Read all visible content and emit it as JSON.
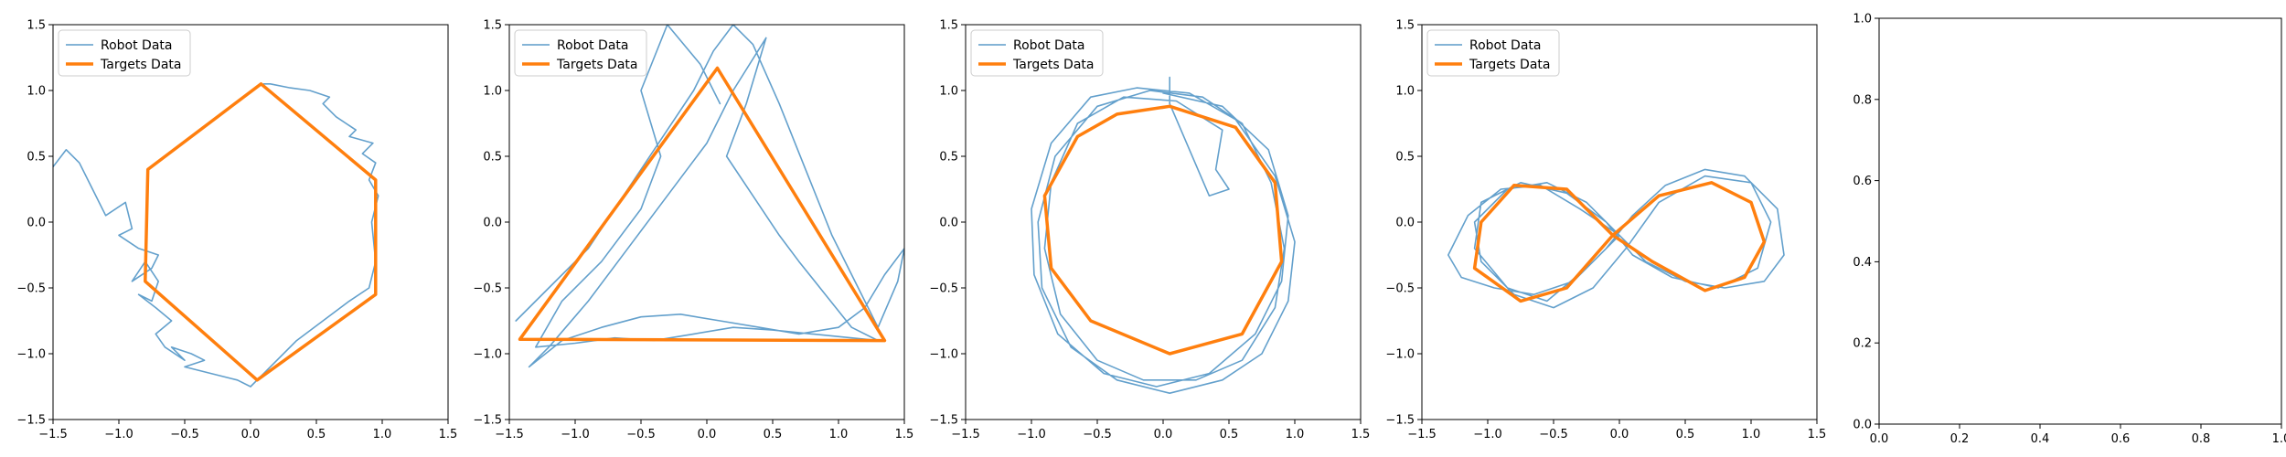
{
  "chart_data": [
    {
      "type": "line",
      "xlim": [
        -1.5,
        1.5
      ],
      "ylim": [
        -1.5,
        1.5
      ],
      "xticks": [
        -1.5,
        -1.0,
        -0.5,
        0.0,
        0.5,
        1.0,
        1.5
      ],
      "yticks": [
        -1.5,
        -1.0,
        -0.5,
        0.0,
        0.5,
        1.0,
        1.5
      ],
      "xtick_labels": [
        "−1.5",
        "−1.0",
        "−0.5",
        "0.0",
        "0.5",
        "1.0",
        "1.5"
      ],
      "ytick_labels": [
        "−1.5",
        "−1.0",
        "−0.5",
        "0.0",
        "0.5",
        "1.0",
        "1.5"
      ],
      "legend": {
        "placement": "upper-left",
        "entries": [
          "Robot Data",
          "Targets Data"
        ]
      },
      "series": [
        {
          "name": "Robot Data",
          "color": "#5b9bc9",
          "x": [
            -1.5,
            -1.4,
            -1.3,
            -1.2,
            -1.1,
            -0.95,
            -0.9,
            -1.0,
            -0.85,
            -0.7,
            -0.75,
            -0.9,
            -0.8,
            -0.7,
            -0.75,
            -0.85,
            -0.72,
            -0.6,
            -0.72,
            -0.65,
            -0.5,
            -0.6,
            -0.45,
            -0.35,
            -0.5,
            -0.3,
            -0.1,
            0.0,
            0.05,
            0.15,
            0.35,
            0.55,
            0.75,
            0.9,
            0.95,
            0.92,
            0.97,
            0.9,
            0.95,
            0.85,
            0.93,
            0.75,
            0.8,
            0.65,
            0.55,
            0.6,
            0.45,
            0.3,
            0.15,
            0.1
          ],
          "y": [
            0.42,
            0.55,
            0.45,
            0.25,
            0.05,
            0.15,
            -0.05,
            -0.1,
            -0.2,
            -0.25,
            -0.35,
            -0.45,
            -0.3,
            -0.45,
            -0.6,
            -0.55,
            -0.65,
            -0.75,
            -0.85,
            -0.95,
            -1.05,
            -0.95,
            -1.0,
            -1.05,
            -1.1,
            -1.15,
            -1.2,
            -1.25,
            -1.2,
            -1.1,
            -0.9,
            -0.75,
            -0.6,
            -0.5,
            -0.3,
            0.0,
            0.2,
            0.32,
            0.45,
            0.52,
            0.6,
            0.65,
            0.7,
            0.8,
            0.9,
            0.95,
            1.0,
            1.02,
            1.05,
            1.05
          ]
        },
        {
          "name": "Targets Data",
          "color": "#ff7f0e",
          "x": [
            0.08,
            0.95,
            0.95,
            0.05,
            -0.8,
            -0.78,
            0.08
          ],
          "y": [
            1.05,
            0.32,
            -0.55,
            -1.2,
            -0.45,
            0.4,
            1.05
          ]
        }
      ]
    },
    {
      "type": "line",
      "xlim": [
        -1.5,
        1.5
      ],
      "ylim": [
        -1.5,
        1.5
      ],
      "xticks": [
        -1.5,
        -1.0,
        -0.5,
        0.0,
        0.5,
        1.0,
        1.5
      ],
      "yticks": [
        -1.5,
        -1.0,
        -0.5,
        0.0,
        0.5,
        1.0,
        1.5
      ],
      "xtick_labels": [
        "−1.5",
        "−1.0",
        "−0.5",
        "0.0",
        "0.5",
        "1.0",
        "1.5"
      ],
      "ytick_labels": [
        "−1.5",
        "−1.0",
        "−0.5",
        "0.0",
        "0.5",
        "1.0",
        "1.5"
      ],
      "legend": {
        "placement": "upper-left",
        "entries": [
          "Robot Data",
          "Targets Data"
        ]
      },
      "series": [
        {
          "name": "Robot Data",
          "color": "#5b9bc9",
          "x": [
            -1.45,
            -1.2,
            -0.9,
            -0.7,
            -0.5,
            -0.3,
            -0.1,
            0.05,
            0.2,
            0.35,
            0.55,
            0.75,
            0.95,
            1.15,
            1.3,
            1.45,
            1.5,
            1.35,
            1.2,
            1.0,
            0.7,
            0.4,
            0.1,
            -0.2,
            -0.5,
            -0.8,
            -1.1,
            -1.35,
            -1.2,
            -0.9,
            -0.6,
            -0.3,
            0.0,
            0.2,
            0.45,
            0.3,
            0.15,
            0.35,
            0.55,
            0.7,
            0.9,
            1.1,
            1.3,
            1.1,
            0.8,
            0.5,
            0.2,
            -0.1,
            -0.4,
            -0.7,
            -1.0,
            -1.3,
            -1.1,
            -0.8,
            -0.5,
            -0.35,
            -0.5,
            -0.3,
            -0.05,
            0.1
          ],
          "y": [
            -0.75,
            -0.5,
            -0.2,
            0.1,
            0.4,
            0.7,
            1.0,
            1.3,
            1.5,
            1.35,
            0.9,
            0.4,
            -0.1,
            -0.5,
            -0.8,
            -0.45,
            -0.2,
            -0.4,
            -0.65,
            -0.8,
            -0.85,
            -0.8,
            -0.75,
            -0.7,
            -0.72,
            -0.8,
            -0.9,
            -1.1,
            -0.95,
            -0.6,
            -0.2,
            0.2,
            0.6,
            1.0,
            1.4,
            0.9,
            0.5,
            0.2,
            -0.1,
            -0.3,
            -0.55,
            -0.8,
            -0.9,
            -0.88,
            -0.85,
            -0.82,
            -0.8,
            -0.85,
            -0.9,
            -0.88,
            -0.92,
            -0.95,
            -0.6,
            -0.3,
            0.1,
            0.5,
            1.0,
            1.5,
            1.2,
            0.9
          ]
        },
        {
          "name": "Targets Data",
          "color": "#ff7f0e",
          "x": [
            0.08,
            1.35,
            -1.42,
            0.08
          ],
          "y": [
            1.17,
            -0.9,
            -0.89,
            1.17
          ]
        }
      ]
    },
    {
      "type": "line",
      "xlim": [
        -1.5,
        1.5
      ],
      "ylim": [
        -1.5,
        1.5
      ],
      "xticks": [
        -1.5,
        -1.0,
        -0.5,
        0.0,
        0.5,
        1.0,
        1.5
      ],
      "yticks": [
        -1.5,
        -1.0,
        -0.5,
        0.0,
        0.5,
        1.0,
        1.5
      ],
      "xtick_labels": [
        "−1.5",
        "−1.0",
        "−0.5",
        "0.0",
        "0.5",
        "1.0",
        "1.5"
      ],
      "ytick_labels": [
        "−1.5",
        "−1.0",
        "−0.5",
        "0.0",
        "0.5",
        "1.0",
        "1.5"
      ],
      "legend": {
        "placement": "upper-left",
        "entries": [
          "Robot Data",
          "Targets Data"
        ]
      },
      "series": [
        {
          "name": "Robot Data",
          "color": "#5b9bc9",
          "x": [
            0.0,
            0.45,
            0.8,
            0.95,
            0.9,
            0.7,
            0.35,
            -0.05,
            -0.45,
            -0.8,
            -0.98,
            -1.0,
            -0.85,
            -0.55,
            -0.2,
            0.2,
            0.55,
            0.85,
            1.0,
            0.95,
            0.75,
            0.45,
            0.05,
            -0.35,
            -0.7,
            -0.92,
            -0.95,
            -0.82,
            -0.5,
            -0.1,
            0.3,
            0.6,
            0.82,
            0.92,
            0.85,
            0.6,
            0.25,
            -0.15,
            -0.5,
            -0.78,
            -0.9,
            -0.85,
            -0.65,
            -0.3,
            0.1,
            0.45,
            0.4,
            0.5,
            0.35,
            0.05,
            0.05
          ],
          "y": [
            0.98,
            0.88,
            0.55,
            0.05,
            -0.45,
            -0.85,
            -1.15,
            -1.25,
            -1.15,
            -0.85,
            -0.4,
            0.1,
            0.6,
            0.95,
            1.02,
            0.98,
            0.78,
            0.35,
            -0.15,
            -0.6,
            -1.0,
            -1.2,
            -1.3,
            -1.2,
            -0.95,
            -0.5,
            0.0,
            0.5,
            0.88,
            1.0,
            0.95,
            0.75,
            0.3,
            -0.2,
            -0.65,
            -1.05,
            -1.2,
            -1.2,
            -1.05,
            -0.7,
            -0.2,
            0.3,
            0.75,
            0.95,
            0.92,
            0.7,
            0.4,
            0.25,
            0.2,
            0.9,
            1.1
          ]
        },
        {
          "name": "Targets Data",
          "color": "#ff7f0e",
          "x": [
            0.05,
            0.55,
            0.85,
            0.9,
            0.6,
            0.05,
            -0.55,
            -0.85,
            -0.9,
            -0.65,
            -0.35,
            0.05
          ],
          "y": [
            0.88,
            0.72,
            0.3,
            -0.3,
            -0.85,
            -1.0,
            -0.75,
            -0.35,
            0.2,
            0.65,
            0.82,
            0.88
          ]
        }
      ]
    },
    {
      "type": "line",
      "xlim": [
        -1.5,
        1.5
      ],
      "ylim": [
        -1.5,
        1.5
      ],
      "xticks": [
        -1.5,
        -1.0,
        -0.5,
        0.0,
        0.5,
        1.0,
        1.5
      ],
      "yticks": [
        -1.5,
        -1.0,
        -0.5,
        0.0,
        0.5,
        1.0,
        1.5
      ],
      "xtick_labels": [
        "−1.5",
        "−1.0",
        "−0.5",
        "0.0",
        "0.5",
        "1.0",
        "1.5"
      ],
      "ytick_labels": [
        "−1.5",
        "−1.0",
        "−0.5",
        "0.0",
        "0.5",
        "1.0",
        "1.5"
      ],
      "legend": {
        "placement": "upper-left",
        "entries": [
          "Robot Data",
          "Targets Data"
        ]
      },
      "series": [
        {
          "name": "Robot Data",
          "color": "#5b9bc9",
          "x": [
            0.0,
            -0.3,
            -0.6,
            -0.9,
            -1.15,
            -1.3,
            -1.2,
            -0.95,
            -0.65,
            -0.35,
            -0.1,
            0.1,
            0.35,
            0.65,
            0.95,
            1.2,
            1.25,
            1.1,
            0.8,
            0.5,
            0.2,
            0.0,
            -0.25,
            -0.55,
            -0.85,
            -1.1,
            -1.05,
            -0.8,
            -0.5,
            -0.2,
            0.05,
            0.3,
            0.65,
            1.0,
            1.15,
            1.05,
            0.75,
            0.4,
            0.1,
            -0.1,
            -0.4,
            -0.75,
            -1.05,
            -1.1,
            -0.85,
            -0.55,
            -0.25,
            0.0
          ],
          "y": [
            -0.1,
            0.1,
            0.28,
            0.25,
            0.05,
            -0.25,
            -0.42,
            -0.5,
            -0.55,
            -0.45,
            -0.2,
            0.05,
            0.28,
            0.4,
            0.35,
            0.1,
            -0.25,
            -0.45,
            -0.5,
            -0.45,
            -0.3,
            -0.1,
            0.15,
            0.3,
            0.25,
            0.0,
            -0.3,
            -0.55,
            -0.65,
            -0.5,
            -0.2,
            0.15,
            0.35,
            0.3,
            0.0,
            -0.35,
            -0.5,
            -0.42,
            -0.25,
            0.0,
            0.22,
            0.3,
            0.15,
            -0.2,
            -0.5,
            -0.6,
            -0.35,
            -0.1
          ]
        },
        {
          "name": "Targets Data",
          "color": "#ff7f0e",
          "x": [
            -0.05,
            -0.4,
            -0.8,
            -1.05,
            -1.1,
            -0.75,
            -0.4,
            -0.05,
            0.3,
            0.7,
            1.0,
            1.1,
            0.95,
            0.65,
            0.25,
            -0.05
          ],
          "y": [
            -0.1,
            0.25,
            0.28,
            0.0,
            -0.35,
            -0.6,
            -0.5,
            -0.1,
            0.2,
            0.3,
            0.15,
            -0.15,
            -0.42,
            -0.52,
            -0.3,
            -0.1
          ]
        }
      ]
    },
    {
      "type": "line",
      "xlim": [
        0.0,
        1.0
      ],
      "ylim": [
        0.0,
        1.0
      ],
      "xticks": [
        0.0,
        0.2,
        0.4,
        0.6,
        0.8,
        1.0
      ],
      "yticks": [
        0.0,
        0.2,
        0.4,
        0.6,
        0.8,
        1.0
      ],
      "xtick_labels": [
        "0.0",
        "0.2",
        "0.4",
        "0.6",
        "0.8",
        "1.0"
      ],
      "ytick_labels": [
        "0.0",
        "0.2",
        "0.4",
        "0.6",
        "0.8",
        "1.0"
      ],
      "legend": null,
      "series": []
    }
  ]
}
